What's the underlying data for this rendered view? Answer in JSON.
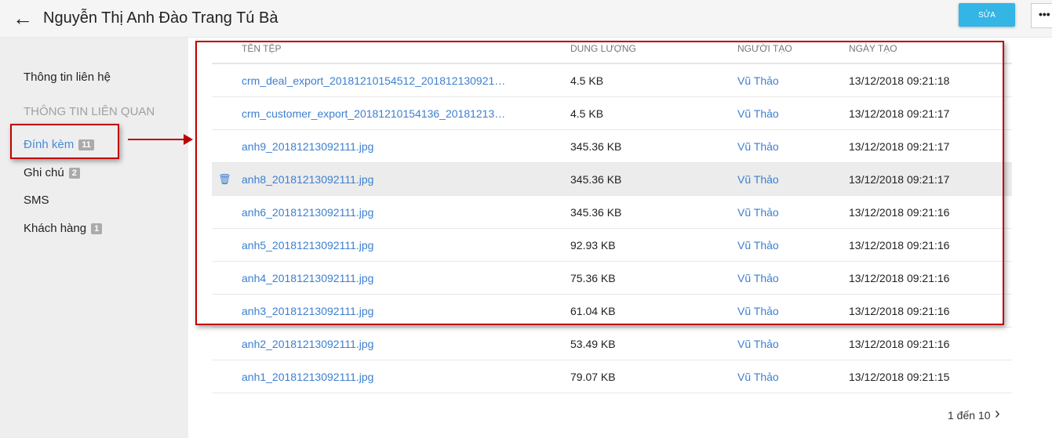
{
  "header": {
    "title": "Nguyễn Thị Anh Đào Trang Tú Bà",
    "edit_label": "SỬA",
    "more_label": "•••"
  },
  "sidebar": {
    "contact_info": "Thông tin liên hệ",
    "related_heading": "THÔNG TIN LIÊN QUAN",
    "items": [
      {
        "label": "Đính kèm",
        "count": "11"
      },
      {
        "label": "Ghi chú",
        "count": "2"
      },
      {
        "label": "SMS"
      },
      {
        "label": "Khách hàng",
        "count": "1"
      }
    ]
  },
  "table": {
    "columns": [
      "TÊN TỆP",
      "DUNG LƯỢNG",
      "NGƯỜI TẠO",
      "NGÀY TẠO"
    ],
    "rows": [
      {
        "name": "crm_deal_export_20181210154512_201812130921…",
        "size": "4.5 KB",
        "creator": "Vũ Thảo",
        "date": "13/12/2018 09:21:18"
      },
      {
        "name": "crm_customer_export_20181210154136_20181213…",
        "size": "4.5 KB",
        "creator": "Vũ Thảo",
        "date": "13/12/2018 09:21:17"
      },
      {
        "name": "anh9_20181213092111.jpg",
        "size": "345.36 KB",
        "creator": "Vũ Thảo",
        "date": "13/12/2018 09:21:17"
      },
      {
        "name": "anh8_20181213092111.jpg",
        "size": "345.36 KB",
        "creator": "Vũ Thảo",
        "date": "13/12/2018 09:21:17"
      },
      {
        "name": "anh6_20181213092111.jpg",
        "size": "345.36 KB",
        "creator": "Vũ Thảo",
        "date": "13/12/2018 09:21:16"
      },
      {
        "name": "anh5_20181213092111.jpg",
        "size": "92.93 KB",
        "creator": "Vũ Thảo",
        "date": "13/12/2018 09:21:16"
      },
      {
        "name": "anh4_20181213092111.jpg",
        "size": "75.36 KB",
        "creator": "Vũ Thảo",
        "date": "13/12/2018 09:21:16"
      },
      {
        "name": "anh3_20181213092111.jpg",
        "size": "61.04 KB",
        "creator": "Vũ Thảo",
        "date": "13/12/2018 09:21:16"
      },
      {
        "name": "anh2_20181213092111.jpg",
        "size": "53.49 KB",
        "creator": "Vũ Thảo",
        "date": "13/12/2018 09:21:16"
      },
      {
        "name": "anh1_20181213092111.jpg",
        "size": "79.07 KB",
        "creator": "Vũ Thảo",
        "date": "13/12/2018 09:21:15"
      }
    ]
  },
  "pagination": {
    "label": "1 đến 10"
  },
  "colors": {
    "accent": "#33b5e5",
    "link": "#3c7fd0",
    "annotation": "#c00000"
  }
}
